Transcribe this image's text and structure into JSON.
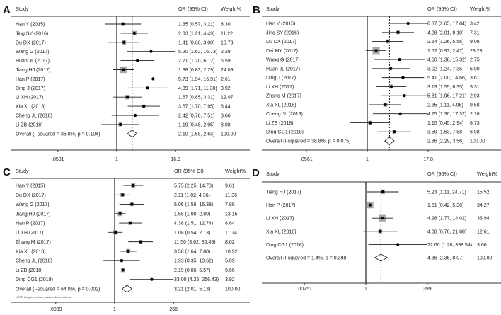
{
  "chart_data": [
    {
      "type": "forest",
      "panel": "A",
      "headers": {
        "study": "Study",
        "or_ci": "OR (95% CI)",
        "weight": "Weight%"
      },
      "x_scale": "log",
      "x_ticks": [
        ".0591",
        "1",
        "16.9"
      ],
      "xlim": [
        0.0591,
        16.9
      ],
      "studies": [
        {
          "study": "Han Y (2015)",
          "or": 1.35,
          "lo": 0.57,
          "hi": 3.21,
          "or_ci": "1.35 (0.57, 3.21)",
          "weight": "8.30"
        },
        {
          "study": "Jing SY (2016)",
          "or": 2.33,
          "lo": 1.21,
          "hi": 4.49,
          "or_ci": "2.33 (1.21, 4.49)",
          "weight": "11.22"
        },
        {
          "study": "Du DX (2017)",
          "or": 1.41,
          "lo": 0.66,
          "hi": 3.0,
          "or_ci": "1.41 (0.66, 3.00)",
          "weight": "10.73"
        },
        {
          "study": "Wang G (2017)",
          "or": 5.2,
          "lo": 1.62,
          "hi": 16.73,
          "or_ci": "5.20 (1.62, 16.73)",
          "weight": "2.29"
        },
        {
          "study": "Huan JL (2017)",
          "or": 2.71,
          "lo": 1.2,
          "hi": 6.12,
          "or_ci": "2.71 (1.20, 6.12)",
          "weight": "6.59"
        },
        {
          "study": "Jiang HJ (2017)",
          "or": 1.38,
          "lo": 0.83,
          "hi": 2.29,
          "or_ci": "1.38 (0.83, 2.29)",
          "weight": "24.09"
        },
        {
          "study": "Han P (2017)",
          "or": 5.73,
          "lo": 1.94,
          "hi": 16.91,
          "or_ci": "5.73 (1.94, 16.91)",
          "weight": "2.61"
        },
        {
          "study": "Ding J  (2017)",
          "or": 4.39,
          "lo": 1.71,
          "hi": 11.3,
          "or_ci": "4.39 (1.71, 11.30)",
          "weight": "3.92"
        },
        {
          "study": "Li XH (2017)",
          "or": 1.67,
          "lo": 0.85,
          "hi": 3.31,
          "or_ci": "1.67 (0.85, 3.31)",
          "weight": "12.07"
        },
        {
          "study": "Xia XL (2018)",
          "or": 3.67,
          "lo": 1.7,
          "hi": 7.95,
          "or_ci": "3.67 (1.70, 7.95)",
          "weight": "6.44"
        },
        {
          "study": "Cheng JL (2018)",
          "or": 2.42,
          "lo": 0.78,
          "hi": 7.51,
          "or_ci": "2.42 (0.78, 7.51)",
          "weight": "3.66"
        },
        {
          "study": "Li ZB (2018)",
          "or": 1.19,
          "lo": 0.48,
          "hi": 2.95,
          "or_ci": "1.19 (0.48, 2.95)",
          "weight": "8.08"
        }
      ],
      "overall": {
        "label": "Overall  (I-squared = 35.8%, p = 0.104)",
        "or": 2.1,
        "lo": 1.68,
        "hi": 2.63,
        "or_ci": "2.10 (1.68, 2.63)",
        "weight": "100.00"
      }
    },
    {
      "type": "forest",
      "panel": "B",
      "headers": {
        "study": "Study",
        "or_ci": "OR (95% CI)",
        "weight": "Weight%"
      },
      "x_scale": "log",
      "x_ticks": [
        ".0561",
        "1",
        "17.8"
      ],
      "xlim": [
        0.0561,
        17.8
      ],
      "studies": [
        {
          "study": "Han Y (2015)",
          "or": 6.87,
          "lo": 2.65,
          "hi": 17.84,
          "or_ci": "6.87 (2.65, 17.84)",
          "weight": "3.42"
        },
        {
          "study": "Jing SY (2016)",
          "or": 4.28,
          "lo": 2.01,
          "hi": 9.1,
          "or_ci": "4.28 (2.01, 9.10)",
          "weight": "7.31"
        },
        {
          "study": "Du DX (2017)",
          "or": 2.64,
          "lo": 1.26,
          "hi": 5.56,
          "or_ci": "2.64 (1.26, 5.56)",
          "weight": "9.08"
        },
        {
          "study": "Dai MY (2017)",
          "or": 1.52,
          "lo": 0.93,
          "hi": 2.47,
          "or_ci": "1.52 (0.93, 2.47)",
          "weight": "28.23"
        },
        {
          "study": "Wang G (2017)",
          "or": 4.6,
          "lo": 1.38,
          "hi": 15.32,
          "or_ci": "4.60 (1.38, 15.32)",
          "weight": "2.75"
        },
        {
          "study": "Huan JL (2017)",
          "or": 3.02,
          "lo": 1.24,
          "hi": 7.35,
          "or_ci": "3.02 (1.24, 7.35)",
          "weight": "5.90"
        },
        {
          "study": "Ding J  (2017)",
          "or": 5.41,
          "lo": 2.0,
          "hi": 14.66,
          "or_ci": "5.41 (2.00, 14.66)",
          "weight": "3.61"
        },
        {
          "study": "Li XH (2017)",
          "or": 3.13,
          "lo": 1.55,
          "hi": 6.35,
          "or_ci": "3.13 (1.55, 6.35)",
          "weight": "9.31"
        },
        {
          "study": "Zhang M (2017)",
          "or": 5.81,
          "lo": 1.96,
          "hi": 17.21,
          "or_ci": "5.81 (1.96, 17.21)",
          "weight": "2.93"
        },
        {
          "study": "Xia XL (2018)",
          "or": 2.35,
          "lo": 1.11,
          "hi": 4.95,
          "or_ci": "2.35 (1.11, 4.95)",
          "weight": "9.58"
        },
        {
          "study": "Cheng JL (2018)",
          "or": 4.75,
          "lo": 1.3,
          "hi": 17.32,
          "or_ci": "4.75 (1.30, 17.32)",
          "weight": "2.16"
        },
        {
          "study": "Li ZB (2018)",
          "or": 1.15,
          "lo": 0.45,
          "hi": 2.94,
          "or_ci": "1.15 (0.45, 2.94)",
          "weight": "8.73"
        },
        {
          "study": "Ding CG1 (2018)",
          "or": 3.59,
          "lo": 1.63,
          "hi": 7.88,
          "or_ci": "3.59 (1.63, 7.88)",
          "weight": "6.98"
        }
      ],
      "overall": {
        "label": "Overall  (I-squared = 38.8%, p = 0.075)",
        "or": 2.86,
        "lo": 2.29,
        "hi": 3.56,
        "or_ci": "2.86 (2.29, 3.56)",
        "weight": "100.00"
      }
    },
    {
      "type": "forest",
      "panel": "C",
      "headers": {
        "study": "Study",
        "or_ci": "OR (95% CI)",
        "weight": "Weight%"
      },
      "x_scale": "log",
      "x_ticks": [
        ".0039",
        "1",
        "256"
      ],
      "xlim": [
        0.0039,
        256
      ],
      "note": "NOTE: Weights are from random effects analysis",
      "studies": [
        {
          "study": "Han Y (2015)",
          "or": 5.75,
          "lo": 2.25,
          "hi": 14.7,
          "or_ci": "5.75 (2.25, 14.70)",
          "weight": "9.61"
        },
        {
          "study": "Du DX (2017)",
          "or": 2.11,
          "lo": 1.02,
          "hi": 4.36,
          "or_ci": "2.11 (1.02, 4.36)",
          "weight": "11.36"
        },
        {
          "study": "Wang G (2017)",
          "or": 5.06,
          "lo": 1.56,
          "hi": 16.38,
          "or_ci": "5.06 (1.56, 16.38)",
          "weight": "7.88"
        },
        {
          "study": "Jiang HJ (2017)",
          "or": 1.68,
          "lo": 1.0,
          "hi": 2.8,
          "or_ci": "1.68 (1.00, 2.80)",
          "weight": "13.15"
        },
        {
          "study": "Han P (2017)",
          "or": 4.38,
          "lo": 1.51,
          "hi": 12.74,
          "or_ci": "4.38 (1.51, 12.74)",
          "weight": "8.64"
        },
        {
          "study": "Li XH (2017)",
          "or": 1.08,
          "lo": 0.54,
          "hi": 2.13,
          "or_ci": "1.08 (0.54, 2.13)",
          "weight": "11.74"
        },
        {
          "study": "Zhang M (2017)",
          "or": 11.5,
          "lo": 3.62,
          "hi": 36.49,
          "or_ci": "11.50 (3.62, 36.49)",
          "weight": "8.02"
        },
        {
          "study": "Xia XL (2018)",
          "or": 3.58,
          "lo": 1.64,
          "hi": 7.8,
          "or_ci": "3.58 (1.64, 7.80)",
          "weight": "10.92"
        },
        {
          "study": "Cheng JL (2018)",
          "or": 1.93,
          "lo": 0.35,
          "hi": 10.62,
          "or_ci": "1.93 (0.35, 10.62)",
          "weight": "5.09"
        },
        {
          "study": "Li ZB (2018)",
          "or": 2.19,
          "lo": 0.86,
          "hi": 5.57,
          "or_ci": "2.19 (0.86, 5.57)",
          "weight": "9.66"
        },
        {
          "study": "Ding CG1 (2018)",
          "or": 33.0,
          "lo": 4.25,
          "hi": 256.43,
          "or_ci": "33.00 (4.25, 256.43)",
          "weight": "3.92"
        }
      ],
      "overall": {
        "label": "Overall  (I-squared = 64.0%, p = 0.002)",
        "or": 3.21,
        "lo": 2.01,
        "hi": 5.13,
        "or_ci": "3.21 (2.01, 5.13)",
        "weight": "100.00"
      }
    },
    {
      "type": "forest",
      "panel": "D",
      "headers": {
        "study": "Study",
        "or_ci": "OR (95% CI)",
        "weight": "Weight%"
      },
      "x_scale": "log",
      "x_ticks": [
        ".00251",
        "1",
        "399"
      ],
      "xlim": [
        0.00251,
        399
      ],
      "studies": [
        {
          "study": "Jiang HJ (2017)",
          "or": 5.23,
          "lo": 1.11,
          "hi": 24.71,
          "or_ci": "5.23 (1.11, 24.71)",
          "weight": "15.52"
        },
        {
          "study": "Han P (2017)",
          "or": 1.51,
          "lo": 0.42,
          "hi": 5.38,
          "or_ci": "1.51 (0.42, 5.38)",
          "weight": "34.27"
        },
        {
          "study": "Li XH (2017)",
          "or": 4.98,
          "lo": 1.77,
          "hi": 14.02,
          "or_ci": "4.98 (1.77, 14.02)",
          "weight": "33.94"
        },
        {
          "study": "Xia XL (2018)",
          "or": 4.08,
          "lo": 0.76,
          "hi": 21.88,
          "or_ci": "4.08 (0.76, 21.88)",
          "weight": "12.61"
        },
        {
          "study": "Ding CG1 (2018)",
          "or": 22.6,
          "lo": 1.28,
          "hi": 398.54,
          "or_ci": "22.60 (1.28, 398.54)",
          "weight": "3.66"
        }
      ],
      "overall": {
        "label": "Overall  (I-squared = 1.4%, p = 0.398)",
        "or": 4.36,
        "lo": 2.36,
        "hi": 8.07,
        "or_ci": "4.36 (2.36, 8.07)",
        "weight": "100.00"
      }
    }
  ]
}
